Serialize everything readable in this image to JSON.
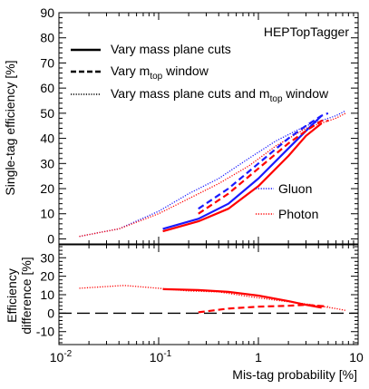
{
  "chart_data": [
    {
      "type": "line",
      "panel": "top",
      "xscale": "log",
      "xlim": [
        0.01,
        10
      ],
      "ylim": [
        -2,
        90
      ],
      "yticks": [
        0,
        10,
        20,
        30,
        40,
        50,
        60,
        70,
        80,
        90
      ],
      "ylabel": "Single-tag efficiency [%]",
      "annotation": "HEPTopTagger",
      "legend_top": [
        {
          "style": "solid",
          "text": "Vary mass plane cuts"
        },
        {
          "style": "dashed",
          "text": "Vary m",
          "sub": "top",
          "text_after": " window"
        },
        {
          "style": "dotted",
          "text": "Vary mass plane cuts and m",
          "sub": "top",
          "text_after": " window"
        }
      ],
      "legend_colors": [
        {
          "name": "Gluon",
          "color": "#1a1aff"
        },
        {
          "name": "Photon",
          "color": "#ff0000"
        }
      ],
      "series": [
        {
          "name": "Gluon",
          "style": "dotted",
          "color": "#1a1aff",
          "x": [
            0.016,
            0.04,
            0.1,
            0.2,
            0.4,
            0.8,
            1.5,
            3,
            6,
            7.5
          ],
          "y": [
            1,
            4,
            11,
            18,
            24,
            32,
            39,
            45,
            49,
            51
          ]
        },
        {
          "name": "Photon",
          "style": "dotted",
          "color": "#ff0000",
          "x": [
            0.016,
            0.04,
            0.1,
            0.2,
            0.4,
            0.8,
            1.5,
            3,
            6,
            7.5
          ],
          "y": [
            1,
            4,
            10,
            16,
            22,
            29,
            37,
            44,
            48,
            50
          ]
        },
        {
          "name": "Gluon",
          "style": "solid",
          "color": "#1a1aff",
          "x": [
            0.11,
            0.25,
            0.5,
            1,
            2,
            3,
            4.3
          ],
          "y": [
            4,
            8,
            14,
            24,
            36,
            43,
            49
          ]
        },
        {
          "name": "Photon",
          "style": "solid",
          "color": "#ff0000",
          "x": [
            0.11,
            0.25,
            0.5,
            1,
            2,
            3,
            4.3
          ],
          "y": [
            3,
            7,
            12,
            21,
            33,
            41,
            46
          ]
        },
        {
          "name": "Gluon",
          "style": "dashed",
          "color": "#1a1aff",
          "x": [
            0.25,
            0.5,
            1,
            2,
            3,
            4.3,
            5
          ],
          "y": [
            12,
            20,
            30,
            40,
            45,
            49,
            50
          ]
        },
        {
          "name": "Photon",
          "style": "dashed",
          "color": "#ff0000",
          "x": [
            0.25,
            0.5,
            1,
            2,
            3,
            4.3,
            5
          ],
          "y": [
            10,
            18,
            28,
            38,
            43,
            47,
            47
          ]
        }
      ]
    },
    {
      "type": "line",
      "panel": "bottom",
      "xscale": "log",
      "xlim": [
        0.01,
        10
      ],
      "xticks": [
        0.01,
        0.1,
        1,
        10
      ],
      "ylim": [
        -17,
        37
      ],
      "yticks": [
        -10,
        0,
        10,
        20,
        30
      ],
      "xlabel": "Mis-tag probability [%]",
      "ylabel_line1": "Efficiency",
      "ylabel_line2": "difference [%]",
      "series": [
        {
          "style": "dotted",
          "color": "#ff0000",
          "x": [
            0.016,
            0.045,
            0.1,
            0.2,
            0.4,
            0.8,
            1.5,
            3,
            6,
            7.5
          ],
          "y": [
            13.5,
            15,
            13.5,
            12,
            11.5,
            9,
            7,
            5,
            2.5,
            1.5
          ]
        },
        {
          "style": "solid",
          "color": "#ff0000",
          "x": [
            0.11,
            0.25,
            0.5,
            1,
            2,
            3,
            4.3
          ],
          "y": [
            13,
            12.5,
            11.5,
            9.5,
            6.5,
            4.5,
            3
          ]
        },
        {
          "style": "dashed",
          "color": "#ff0000",
          "x": [
            0.25,
            0.5,
            1,
            2,
            3,
            4,
            5
          ],
          "y": [
            0.5,
            2.5,
            3.5,
            4,
            4.5,
            4,
            3.5
          ]
        },
        {
          "style": "longdash",
          "color": "#000000",
          "x": [
            0.01,
            10
          ],
          "y": [
            0,
            0
          ]
        }
      ]
    }
  ]
}
